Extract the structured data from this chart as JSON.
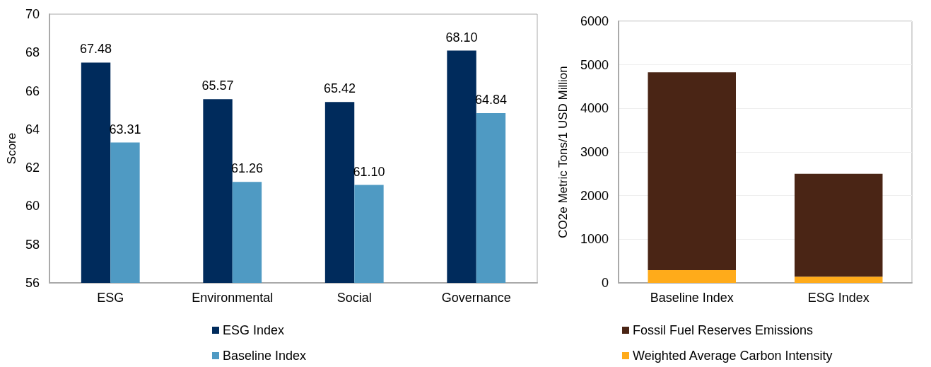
{
  "chart_data": [
    {
      "type": "bar",
      "ylabel": "Score",
      "categories": [
        "ESG",
        "Environmental",
        "Social",
        "Governance"
      ],
      "ylim": [
        56,
        70
      ],
      "yticks": [
        56,
        58,
        60,
        62,
        64,
        66,
        68,
        70
      ],
      "grid": false,
      "legend": "bottom",
      "series": [
        {
          "name": "ESG Index",
          "color": "#002b5c",
          "values": [
            67.48,
            65.57,
            65.42,
            68.1
          ]
        },
        {
          "name": "Baseline Index",
          "color": "#4f9ac3",
          "values": [
            63.31,
            61.26,
            61.1,
            64.84
          ]
        }
      ],
      "value_labels": [
        [
          "67.48",
          "65.57",
          "65.42",
          "68.10"
        ],
        [
          "63.31",
          "61.26",
          "61.10",
          "64.84"
        ]
      ]
    },
    {
      "type": "bar",
      "stacked": true,
      "ylabel": "CO2e Metric Tons/1 USD Million",
      "categories": [
        "Baseline Index",
        "ESG Index"
      ],
      "ylim": [
        0,
        6000
      ],
      "yticks": [
        0,
        1000,
        2000,
        3000,
        4000,
        5000,
        6000
      ],
      "grid": "y",
      "legend": "bottom",
      "series": [
        {
          "name": "Weighted Average Carbon Intensity",
          "color": "#ffab1a",
          "values": [
            290,
            140
          ]
        },
        {
          "name": "Fossil Fuel Reserves Emissions",
          "color": "#4a2515",
          "values": [
            4540,
            2360
          ]
        }
      ]
    }
  ]
}
